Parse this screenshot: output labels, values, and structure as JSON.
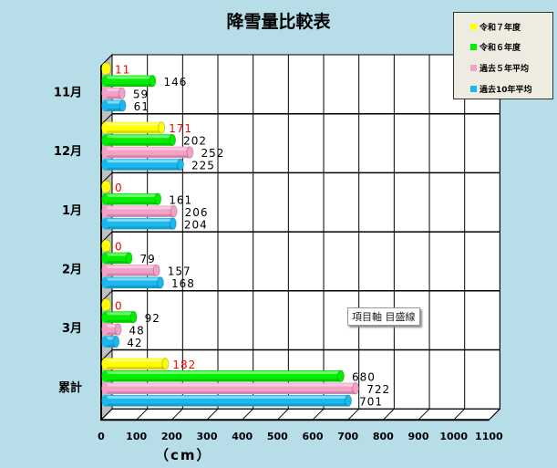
{
  "chart_data": {
    "type": "bar",
    "orientation": "horizontal",
    "style": "3d-cylinder",
    "title": "降雪量比較表",
    "xlabel": "（cm）",
    "ylabel": "",
    "xlim": [
      0,
      1100
    ],
    "x_ticks": [
      "0",
      "100",
      "200",
      "300",
      "400",
      "500",
      "600",
      "700",
      "800",
      "900",
      "1000",
      "1100"
    ],
    "categories": [
      "11月",
      "12月",
      "1月",
      "2月",
      "3月",
      "累計"
    ],
    "series": [
      {
        "name": "令和７年度",
        "color": "#ffff00",
        "label_color": "#ff0000",
        "values": [
          11,
          171,
          0,
          0,
          0,
          182
        ]
      },
      {
        "name": "令和６年度",
        "color": "#00ee00",
        "label_color": "#000000",
        "values": [
          146,
          202,
          161,
          79,
          92,
          680
        ]
      },
      {
        "name": "過去５年平均",
        "color": "#f4a0c8",
        "label_color": "#000000",
        "values": [
          59,
          252,
          206,
          157,
          48,
          722
        ]
      },
      {
        "name": "過去10年平均",
        "color": "#1ab8ee",
        "label_color": "#000000",
        "values": [
          61,
          225,
          204,
          168,
          42,
          701
        ]
      }
    ],
    "grid": true,
    "legend": "top-right"
  },
  "tooltip": "項目軸 目盛線",
  "colors": {
    "background": "#b7dde8",
    "plot": "#ffffff",
    "wall": "#c0c0c0"
  }
}
